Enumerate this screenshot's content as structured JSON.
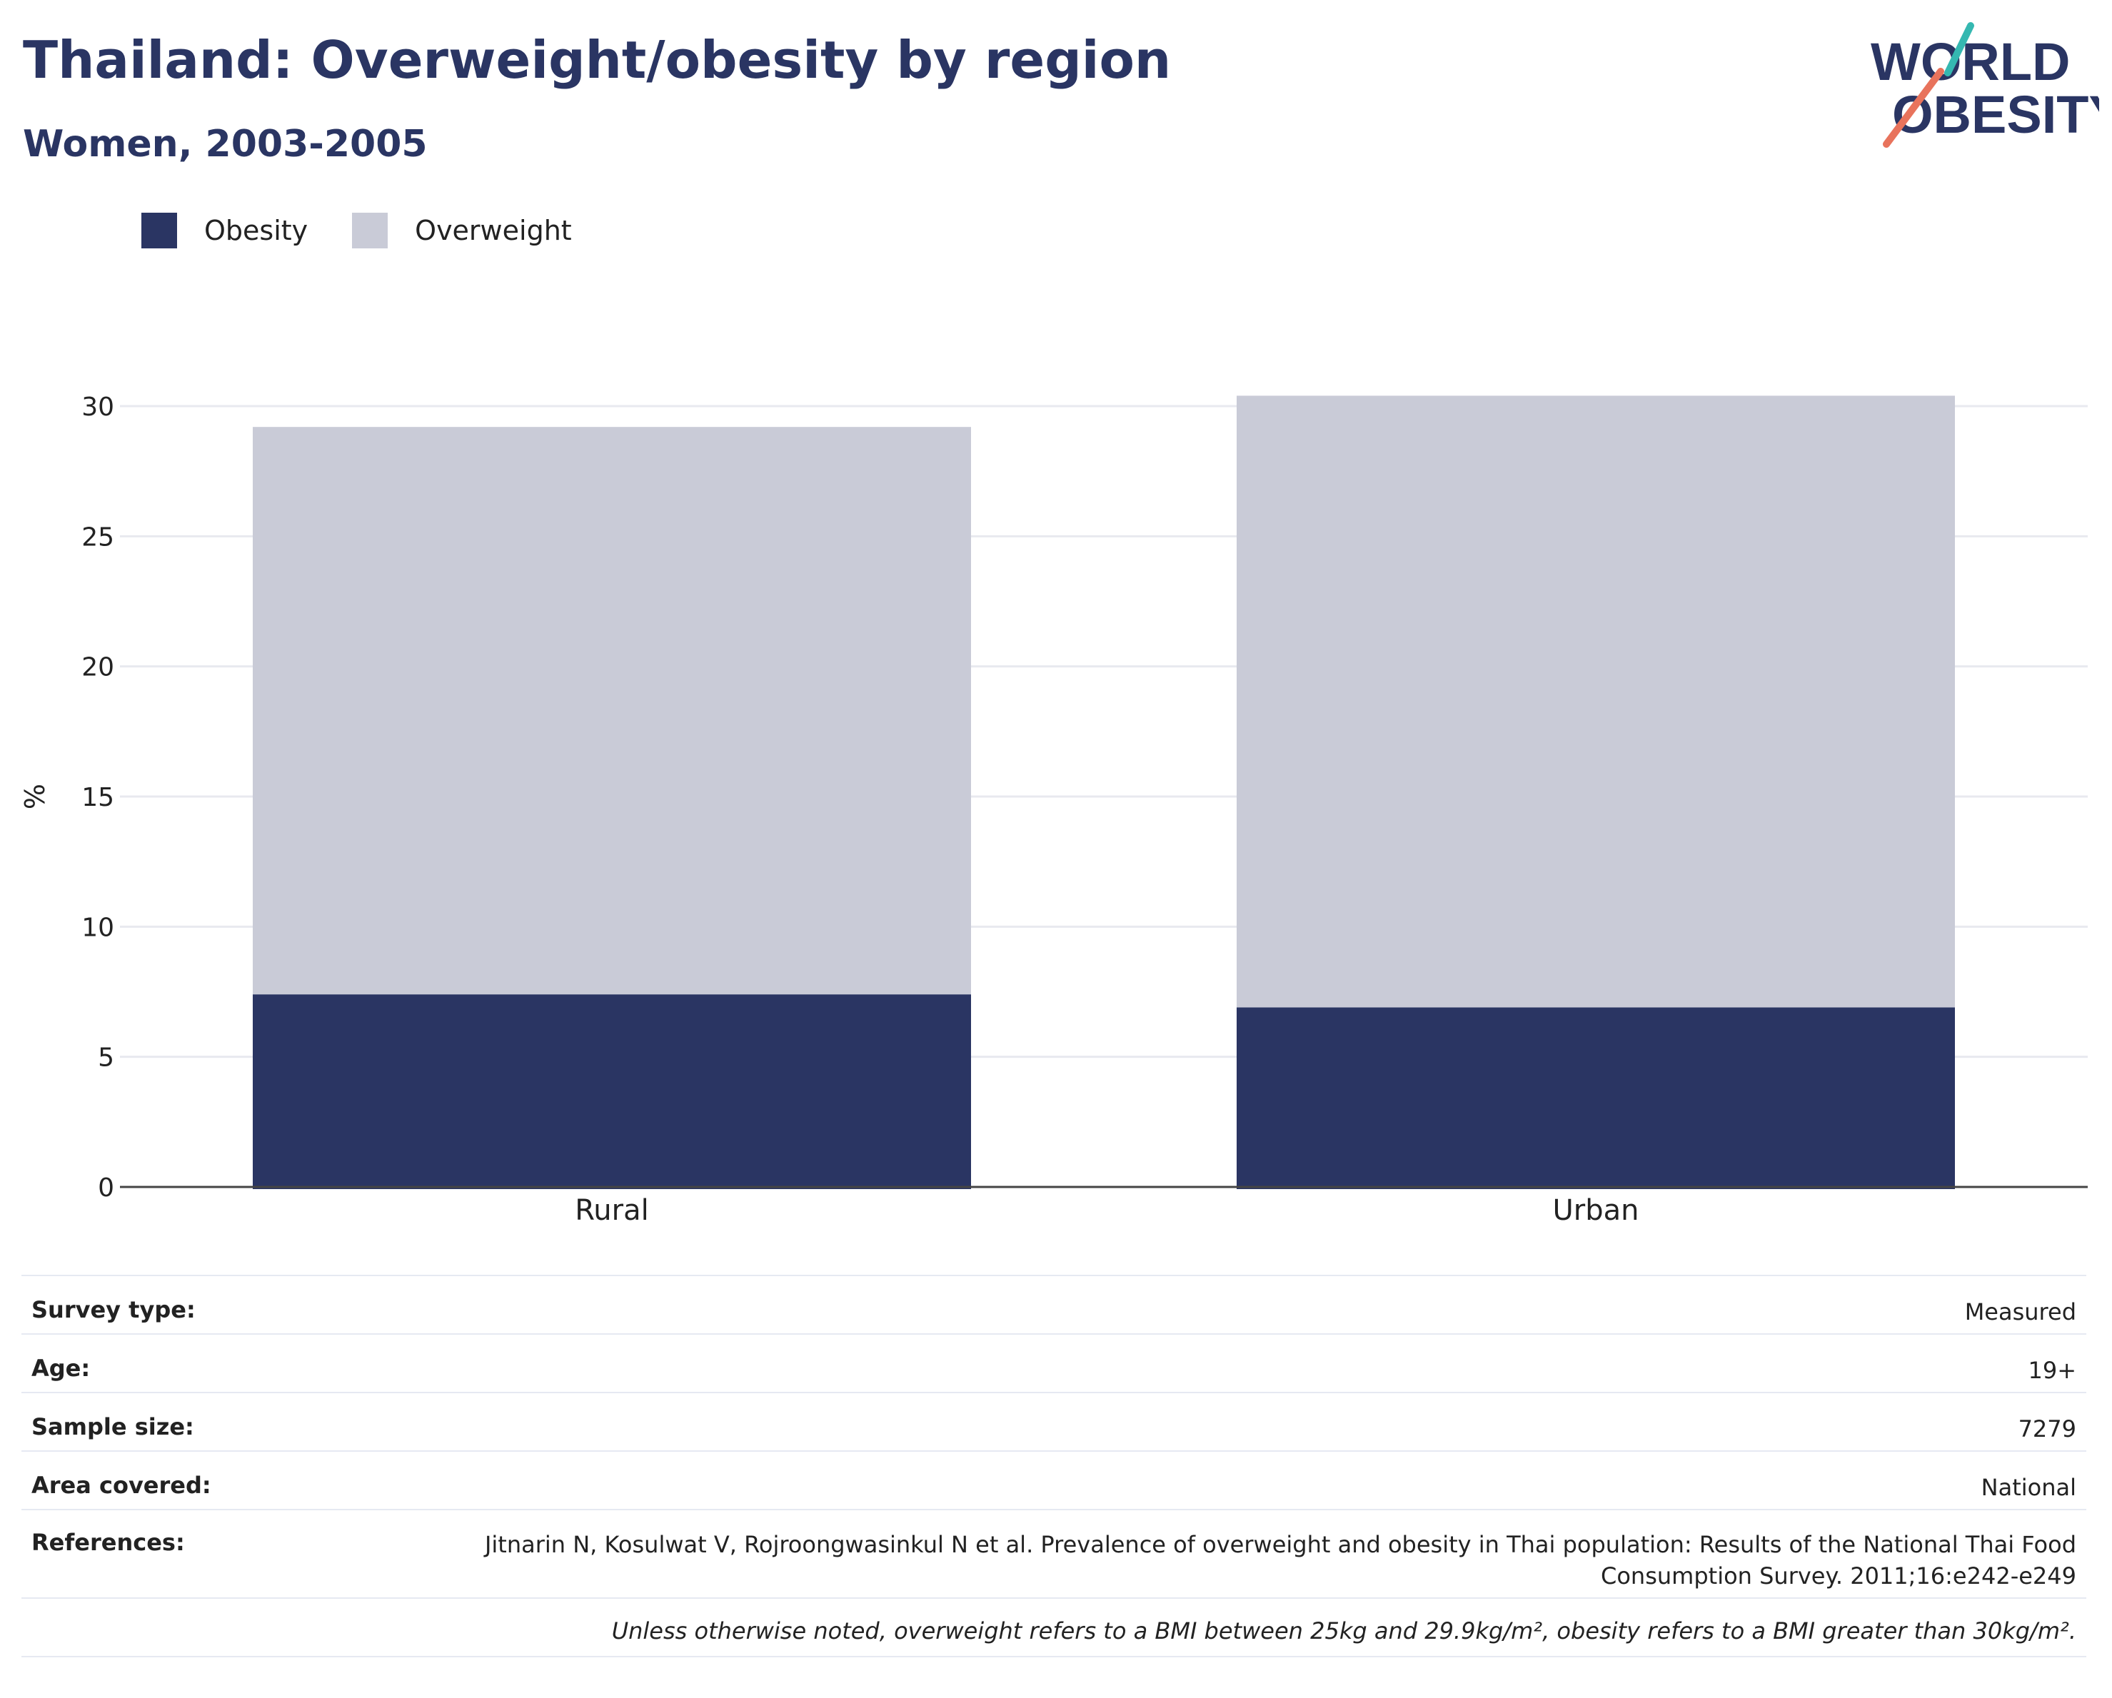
{
  "header": {
    "title": "Thailand: Overweight/obesity by region",
    "subtitle": "Women, 2003-2005"
  },
  "logo": {
    "line1": "WORLD",
    "line2": "OBESITY"
  },
  "legend": [
    {
      "label": "Obesity",
      "color": "#2a3563"
    },
    {
      "label": "Overweight",
      "color": "#c9cbd7"
    }
  ],
  "chart_data": {
    "type": "bar",
    "stacked": true,
    "categories": [
      "Rural",
      "Urban"
    ],
    "series": [
      {
        "name": "Obesity",
        "color": "#2a3563",
        "values": [
          7.4,
          6.9
        ]
      },
      {
        "name": "Overweight",
        "color": "#c9cbd7",
        "values": [
          21.8,
          23.5
        ]
      }
    ],
    "ylabel": "%",
    "ylim": [
      0,
      30
    ],
    "yticks": [
      0,
      5,
      10,
      15,
      20,
      25,
      30
    ],
    "grid": true
  },
  "meta": {
    "survey_type_label": "Survey type:",
    "survey_type_value": "Measured",
    "age_label": "Age:",
    "age_value": "19+",
    "sample_size_label": "Sample size:",
    "sample_size_value": "7279",
    "area_label": "Area covered:",
    "area_value": "National",
    "references_label": "References:",
    "references_value": "Jitnarin N, Kosulwat V, Rojroongwasinkul N et al. Prevalence of overweight and obesity in Thai population: Results of the National Thai Food Consumption Survey. 2011;16:e242-e249",
    "note": "Unless otherwise noted, overweight refers to a BMI between 25kg and 29.9kg/m², obesity refers to a BMI greater than 30kg/m²."
  }
}
